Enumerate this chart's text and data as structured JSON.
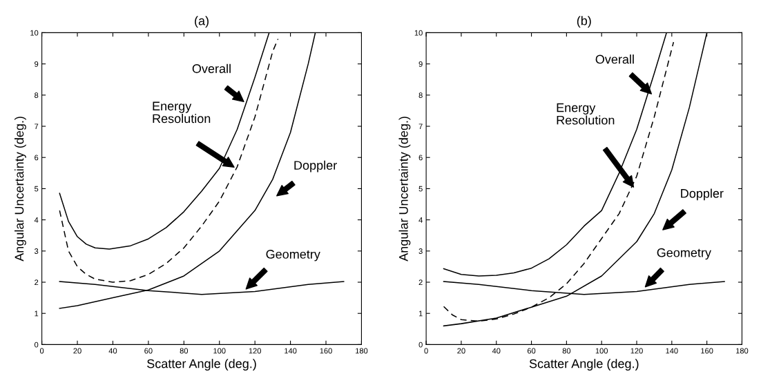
{
  "chart_data": [
    {
      "type": "line",
      "title": "(a)",
      "xlabel": "Scatter Angle (deg.)",
      "ylabel": "Angular Uncertainty (deg.)",
      "xlim": [
        0,
        180
      ],
      "ylim": [
        0,
        10
      ],
      "xticks": [
        0,
        20,
        40,
        60,
        80,
        100,
        120,
        140,
        160,
        180
      ],
      "yticks": [
        0,
        1,
        2,
        3,
        4,
        5,
        6,
        7,
        8,
        9,
        10
      ],
      "series": [
        {
          "color": "#000000",
          "line_style": "solid",
          "x": [
            10,
            15,
            20,
            25,
            30,
            38,
            50,
            60,
            70,
            80,
            90,
            100,
            110,
            120,
            128
          ],
          "values": [
            4.85,
            3.95,
            3.46,
            3.22,
            3.1,
            3.06,
            3.17,
            3.39,
            3.75,
            4.26,
            4.92,
            5.65,
            6.9,
            8.57,
            10
          ]
        },
        {
          "color": "#000000",
          "line_style": "dashed",
          "x": [
            10,
            15,
            20,
            25,
            30,
            40,
            50,
            60,
            70,
            80,
            90,
            100,
            110,
            120,
            130,
            133
          ],
          "values": [
            4.3,
            3.0,
            2.5,
            2.25,
            2.1,
            2.0,
            2.05,
            2.25,
            2.6,
            3.1,
            3.8,
            4.6,
            5.7,
            7.3,
            9.4,
            9.8
          ]
        },
        {
          "color": "#000000",
          "line_style": "solid",
          "x": [
            10,
            20,
            40,
            60,
            80,
            100,
            120,
            130,
            140,
            150,
            154
          ],
          "values": [
            1.16,
            1.25,
            1.5,
            1.75,
            2.2,
            3.0,
            4.3,
            5.3,
            6.8,
            9.0,
            10
          ]
        },
        {
          "color": "#000000",
          "line_style": "solid",
          "x": [
            10,
            30,
            60,
            90,
            120,
            150,
            170
          ],
          "values": [
            2.02,
            1.93,
            1.73,
            1.61,
            1.7,
            1.93,
            2.02
          ]
        }
      ],
      "annotations": [
        "Overall",
        "Energy\nResolution",
        "Doppler",
        "Geometry"
      ]
    },
    {
      "type": "line",
      "title": "(b)",
      "xlabel": "Scatter Angle (deg.)",
      "ylabel": "Angular Uncertainty (deg.)",
      "xlim": [
        0,
        180
      ],
      "ylim": [
        0,
        10
      ],
      "xticks": [
        0,
        20,
        40,
        60,
        80,
        100,
        120,
        140,
        160,
        180
      ],
      "yticks": [
        0,
        1,
        2,
        3,
        4,
        5,
        6,
        7,
        8,
        9,
        10
      ],
      "series": [
        {
          "color": "#000000",
          "line_style": "solid",
          "x": [
            10,
            20,
            30,
            40,
            50,
            60,
            70,
            80,
            90,
            100,
            110,
            120,
            130,
            137
          ],
          "values": [
            2.43,
            2.25,
            2.2,
            2.22,
            2.3,
            2.45,
            2.75,
            3.2,
            3.8,
            4.3,
            5.5,
            6.9,
            8.7,
            10
          ]
        },
        {
          "color": "#000000",
          "line_style": "dashed",
          "x": [
            10,
            15,
            20,
            30,
            40,
            50,
            60,
            70,
            80,
            90,
            100,
            110,
            120,
            130,
            141
          ],
          "values": [
            1.22,
            0.95,
            0.8,
            0.75,
            0.82,
            0.98,
            1.2,
            1.5,
            1.95,
            2.6,
            3.4,
            4.2,
            5.4,
            7.3,
            9.7
          ]
        },
        {
          "color": "#000000",
          "line_style": "solid",
          "x": [
            10,
            20,
            40,
            60,
            80,
            100,
            120,
            130,
            140,
            150,
            160
          ],
          "values": [
            0.6,
            0.67,
            0.85,
            1.2,
            1.55,
            2.2,
            3.3,
            4.2,
            5.6,
            7.6,
            10
          ]
        },
        {
          "color": "#000000",
          "line_style": "solid",
          "x": [
            10,
            30,
            60,
            90,
            120,
            150,
            170
          ],
          "values": [
            2.02,
            1.93,
            1.73,
            1.61,
            1.7,
            1.93,
            2.02
          ]
        }
      ],
      "annotations": [
        "Overall",
        "Energy\nResolution",
        "Doppler",
        "Geometry"
      ]
    }
  ]
}
